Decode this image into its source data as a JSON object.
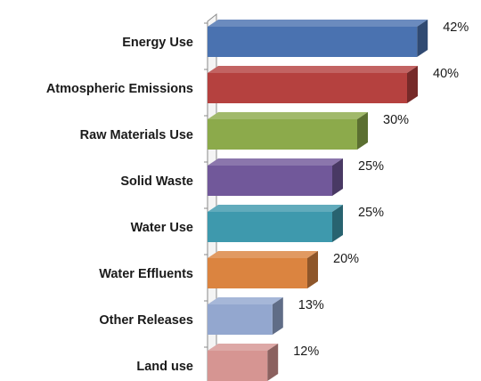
{
  "chart_data": {
    "type": "bar",
    "orientation": "horizontal",
    "style": "3d",
    "title": "",
    "xlabel": "",
    "ylabel": "",
    "xlim": [
      0,
      45
    ],
    "grid": false,
    "legend": "none",
    "categories": [
      "Energy Use",
      "Atmospheric Emissions",
      "Raw Materials Use",
      "Solid Waste",
      "Water Use",
      "Water Effluents",
      "Other Releases",
      "Land use"
    ],
    "values": [
      42,
      40,
      30,
      25,
      25,
      20,
      13,
      12
    ],
    "value_labels": [
      "42%",
      "40%",
      "30%",
      "25%",
      "25%",
      "20%",
      "13%",
      "12%"
    ],
    "colors": [
      "#4a72b0",
      "#b5413f",
      "#8caa4b",
      "#71589a",
      "#3e99ad",
      "#db8440",
      "#93a7cf",
      "#d69592"
    ]
  }
}
